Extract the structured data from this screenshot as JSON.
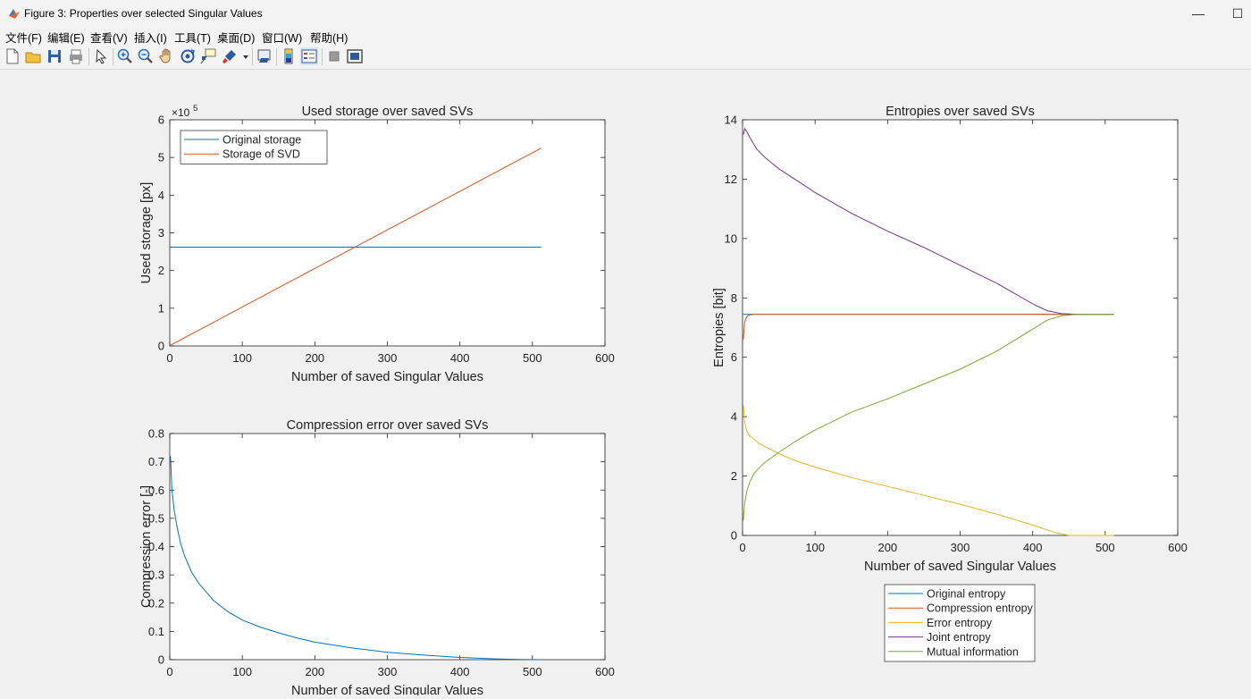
{
  "window": {
    "title": "Figure 3: Properties over selected Singular Values",
    "minimize_icon": "minimize-icon",
    "maximize_icon": "maximize-icon"
  },
  "menu": [
    "文件(F)",
    "编辑(E)",
    "查看(V)",
    "插入(I)",
    "工具(T)",
    "桌面(D)",
    "窗口(W)",
    "帮助(H)"
  ],
  "toolbar": [
    "new-figure-icon",
    "open-file-icon",
    "save-icon",
    "print-icon",
    "select-arrow-icon",
    "zoom-in-icon",
    "zoom-out-icon",
    "pan-hand-icon",
    "rotate-3d-icon",
    "data-cursor-icon",
    "brush-icon",
    "brush-dropdown-icon",
    "link-plot-icon",
    "colorbar-icon",
    "legend-icon",
    "hide-plot-tools-icon",
    "show-plot-tools-icon"
  ],
  "chart_data": [
    {
      "type": "line",
      "title": "Used storage over saved SVs",
      "xlabel": "Number of saved Singular Values",
      "ylabel": "Used storage [px]",
      "xlim": [
        0,
        600
      ],
      "ylim": [
        0,
        600000
      ],
      "xticks": [
        "0",
        "100",
        "200",
        "300",
        "400",
        "500",
        "600"
      ],
      "yticks": [
        "0",
        "1",
        "2",
        "3",
        "4",
        "5",
        "6"
      ],
      "y_exponent": "×10",
      "y_exponent_power": "5",
      "legend": "top-left",
      "series": [
        {
          "name": "Original storage",
          "color": "#0072bd",
          "x": [
            0,
            512
          ],
          "y": [
            262144,
            262144
          ]
        },
        {
          "name": "Storage of SVD",
          "color": "#d95319",
          "x": [
            0,
            512
          ],
          "y": [
            1025,
            524800
          ]
        }
      ]
    },
    {
      "type": "line",
      "title": "Compression error over saved SVs",
      "xlabel": "Number of saved Singular Values",
      "ylabel": "Compression error [-]",
      "xlim": [
        0,
        600
      ],
      "ylim": [
        0,
        0.8
      ],
      "xticks": [
        "0",
        "100",
        "200",
        "300",
        "400",
        "500",
        "600"
      ],
      "yticks": [
        "0",
        "0.1",
        "0.2",
        "0.3",
        "0.4",
        "0.5",
        "0.6",
        "0.7",
        "0.8"
      ],
      "series": [
        {
          "color": "#0072bd",
          "x": [
            1,
            3,
            6,
            10,
            15,
            20,
            30,
            40,
            50,
            60,
            80,
            100,
            125,
            150,
            175,
            200,
            250,
            300,
            350,
            400,
            450,
            480,
            512
          ],
          "y": [
            0.72,
            0.6,
            0.53,
            0.47,
            0.41,
            0.37,
            0.31,
            0.27,
            0.24,
            0.21,
            0.17,
            0.14,
            0.115,
            0.095,
            0.077,
            0.062,
            0.042,
            0.026,
            0.016,
            0.008,
            0.003,
            0.001,
            0.0
          ]
        }
      ]
    },
    {
      "type": "line",
      "title": "Entropies over saved SVs",
      "xlabel": "Number of saved Singular Values",
      "ylabel": "Entropies [bit]",
      "xlim": [
        0,
        600
      ],
      "ylim": [
        0,
        14
      ],
      "xticks": [
        "0",
        "100",
        "200",
        "300",
        "400",
        "500",
        "600"
      ],
      "yticks": [
        "0",
        "2",
        "4",
        "6",
        "8",
        "10",
        "12",
        "14"
      ],
      "legend": "below",
      "series": [
        {
          "name": "Original entropy",
          "color": "#0072bd",
          "x": [
            1,
            512
          ],
          "y": [
            7.45,
            7.45
          ]
        },
        {
          "name": "Compression entropy",
          "color": "#d95319",
          "x": [
            1,
            3,
            6,
            10,
            15,
            20,
            512
          ],
          "y": [
            6.6,
            7.2,
            7.38,
            7.43,
            7.45,
            7.45,
            7.45
          ]
        },
        {
          "name": "Error entropy",
          "color": "#edb120",
          "x": [
            1,
            3,
            6,
            10,
            15,
            20,
            30,
            40,
            50,
            75,
            100,
            150,
            200,
            250,
            300,
            350,
            400,
            430,
            450,
            512
          ],
          "y": [
            4.4,
            3.8,
            3.5,
            3.35,
            3.25,
            3.15,
            3.0,
            2.88,
            2.75,
            2.5,
            2.3,
            1.95,
            1.65,
            1.35,
            1.05,
            0.72,
            0.35,
            0.1,
            0.0,
            0.0
          ]
        },
        {
          "name": "Joint entropy",
          "color": "#7e2f8e",
          "x": [
            1,
            3,
            6,
            10,
            15,
            20,
            30,
            40,
            50,
            75,
            100,
            150,
            200,
            250,
            300,
            350,
            400,
            420,
            440,
            460,
            512
          ],
          "y": [
            13.5,
            13.7,
            13.6,
            13.4,
            13.2,
            13.0,
            12.75,
            12.55,
            12.35,
            11.95,
            11.55,
            10.85,
            10.25,
            9.7,
            9.1,
            8.5,
            7.8,
            7.57,
            7.47,
            7.45,
            7.45
          ]
        },
        {
          "name": "Mutual information",
          "color": "#77ac30",
          "x": [
            1,
            3,
            6,
            10,
            15,
            20,
            30,
            40,
            50,
            75,
            100,
            150,
            200,
            250,
            300,
            350,
            400,
            420,
            440,
            460,
            512
          ],
          "y": [
            0.5,
            1.1,
            1.5,
            1.8,
            2.05,
            2.2,
            2.45,
            2.62,
            2.8,
            3.2,
            3.55,
            4.15,
            4.6,
            5.1,
            5.6,
            6.2,
            6.95,
            7.25,
            7.4,
            7.45,
            7.45
          ]
        }
      ]
    }
  ]
}
